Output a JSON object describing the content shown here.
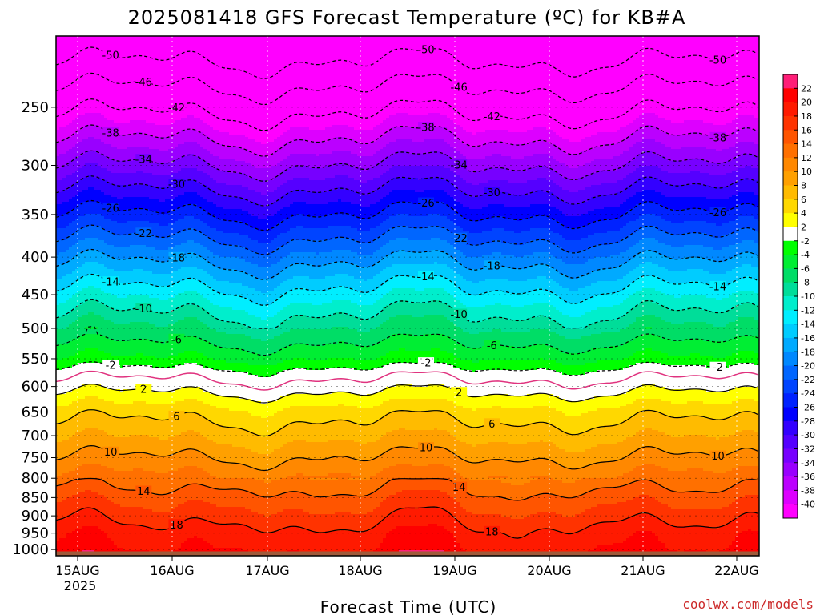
{
  "chart_data": {
    "type": "heatmap",
    "title": "2025081418 GFS Forecast Temperature (ºC) for KB#A",
    "xlabel": "Forecast Time (UTC)",
    "ylabel": "",
    "x_ticks": [
      "15AUG",
      "16AUG",
      "17AUG",
      "18AUG",
      "19AUG",
      "20AUG",
      "21AUG",
      "22AUG"
    ],
    "x_year": "2025",
    "y_ticks": [
      250,
      300,
      350,
      400,
      450,
      500,
      550,
      600,
      650,
      700,
      750,
      800,
      850,
      900,
      950,
      1000
    ],
    "y_scale": "log",
    "y_range": [
      200,
      1020
    ],
    "y_reversed": true,
    "contour_levels": [
      -50,
      -46,
      -42,
      -38,
      -34,
      -30,
      -26,
      -22,
      -18,
      -14,
      -10,
      -6,
      -2,
      2,
      6,
      10,
      14,
      18
    ],
    "freezing_line_color": "#e0337f",
    "ground_color": "#a05a3a",
    "colorbar": {
      "labels": [
        22,
        20,
        18,
        16,
        14,
        12,
        10,
        8,
        6,
        4,
        2,
        -2,
        -4,
        -6,
        -8,
        -10,
        -12,
        -14,
        -16,
        -18,
        -20,
        -22,
        -24,
        -26,
        -28,
        -30,
        -32,
        -34,
        -36,
        -38,
        -40
      ],
      "colors": [
        "#ff1e78",
        "#ff0000",
        "#ff1a00",
        "#ff3300",
        "#ff5500",
        "#ff7000",
        "#ff8800",
        "#ffa000",
        "#ffbb00",
        "#ffd800",
        "#ffff00",
        "#ffffff",
        "#00ff00",
        "#00ee33",
        "#00dd66",
        "#00dd99",
        "#00eecc",
        "#00eeff",
        "#00ccff",
        "#00aaff",
        "#0088ff",
        "#0066ff",
        "#0044ff",
        "#0022ff",
        "#0000ff",
        "#3300ff",
        "#5500ff",
        "#7700ff",
        "#9900ff",
        "#bb00ff",
        "#dd00ff",
        "#ff00ff"
      ]
    },
    "temperature_profile": [
      {
        "pressure": 200,
        "temp": -54
      },
      {
        "pressure": 250,
        "temp": -43
      },
      {
        "pressure": 300,
        "temp": -34
      },
      {
        "pressure": 350,
        "temp": -26
      },
      {
        "pressure": 400,
        "temp": -19
      },
      {
        "pressure": 450,
        "temp": -13
      },
      {
        "pressure": 500,
        "temp": -8
      },
      {
        "pressure": 550,
        "temp": -4
      },
      {
        "pressure": 575,
        "temp": -1
      },
      {
        "pressure": 600,
        "temp": 1
      },
      {
        "pressure": 650,
        "temp": 5
      },
      {
        "pressure": 700,
        "temp": 7.5
      },
      {
        "pressure": 750,
        "temp": 10
      },
      {
        "pressure": 800,
        "temp": 12.5
      },
      {
        "pressure": 850,
        "temp": 15
      },
      {
        "pressure": 900,
        "temp": 17
      },
      {
        "pressure": 950,
        "temp": 19
      },
      {
        "pressure": 1000,
        "temp": 20
      },
      {
        "pressure": 1020,
        "temp": 21
      }
    ]
  },
  "credit": "coolwx.com/models"
}
